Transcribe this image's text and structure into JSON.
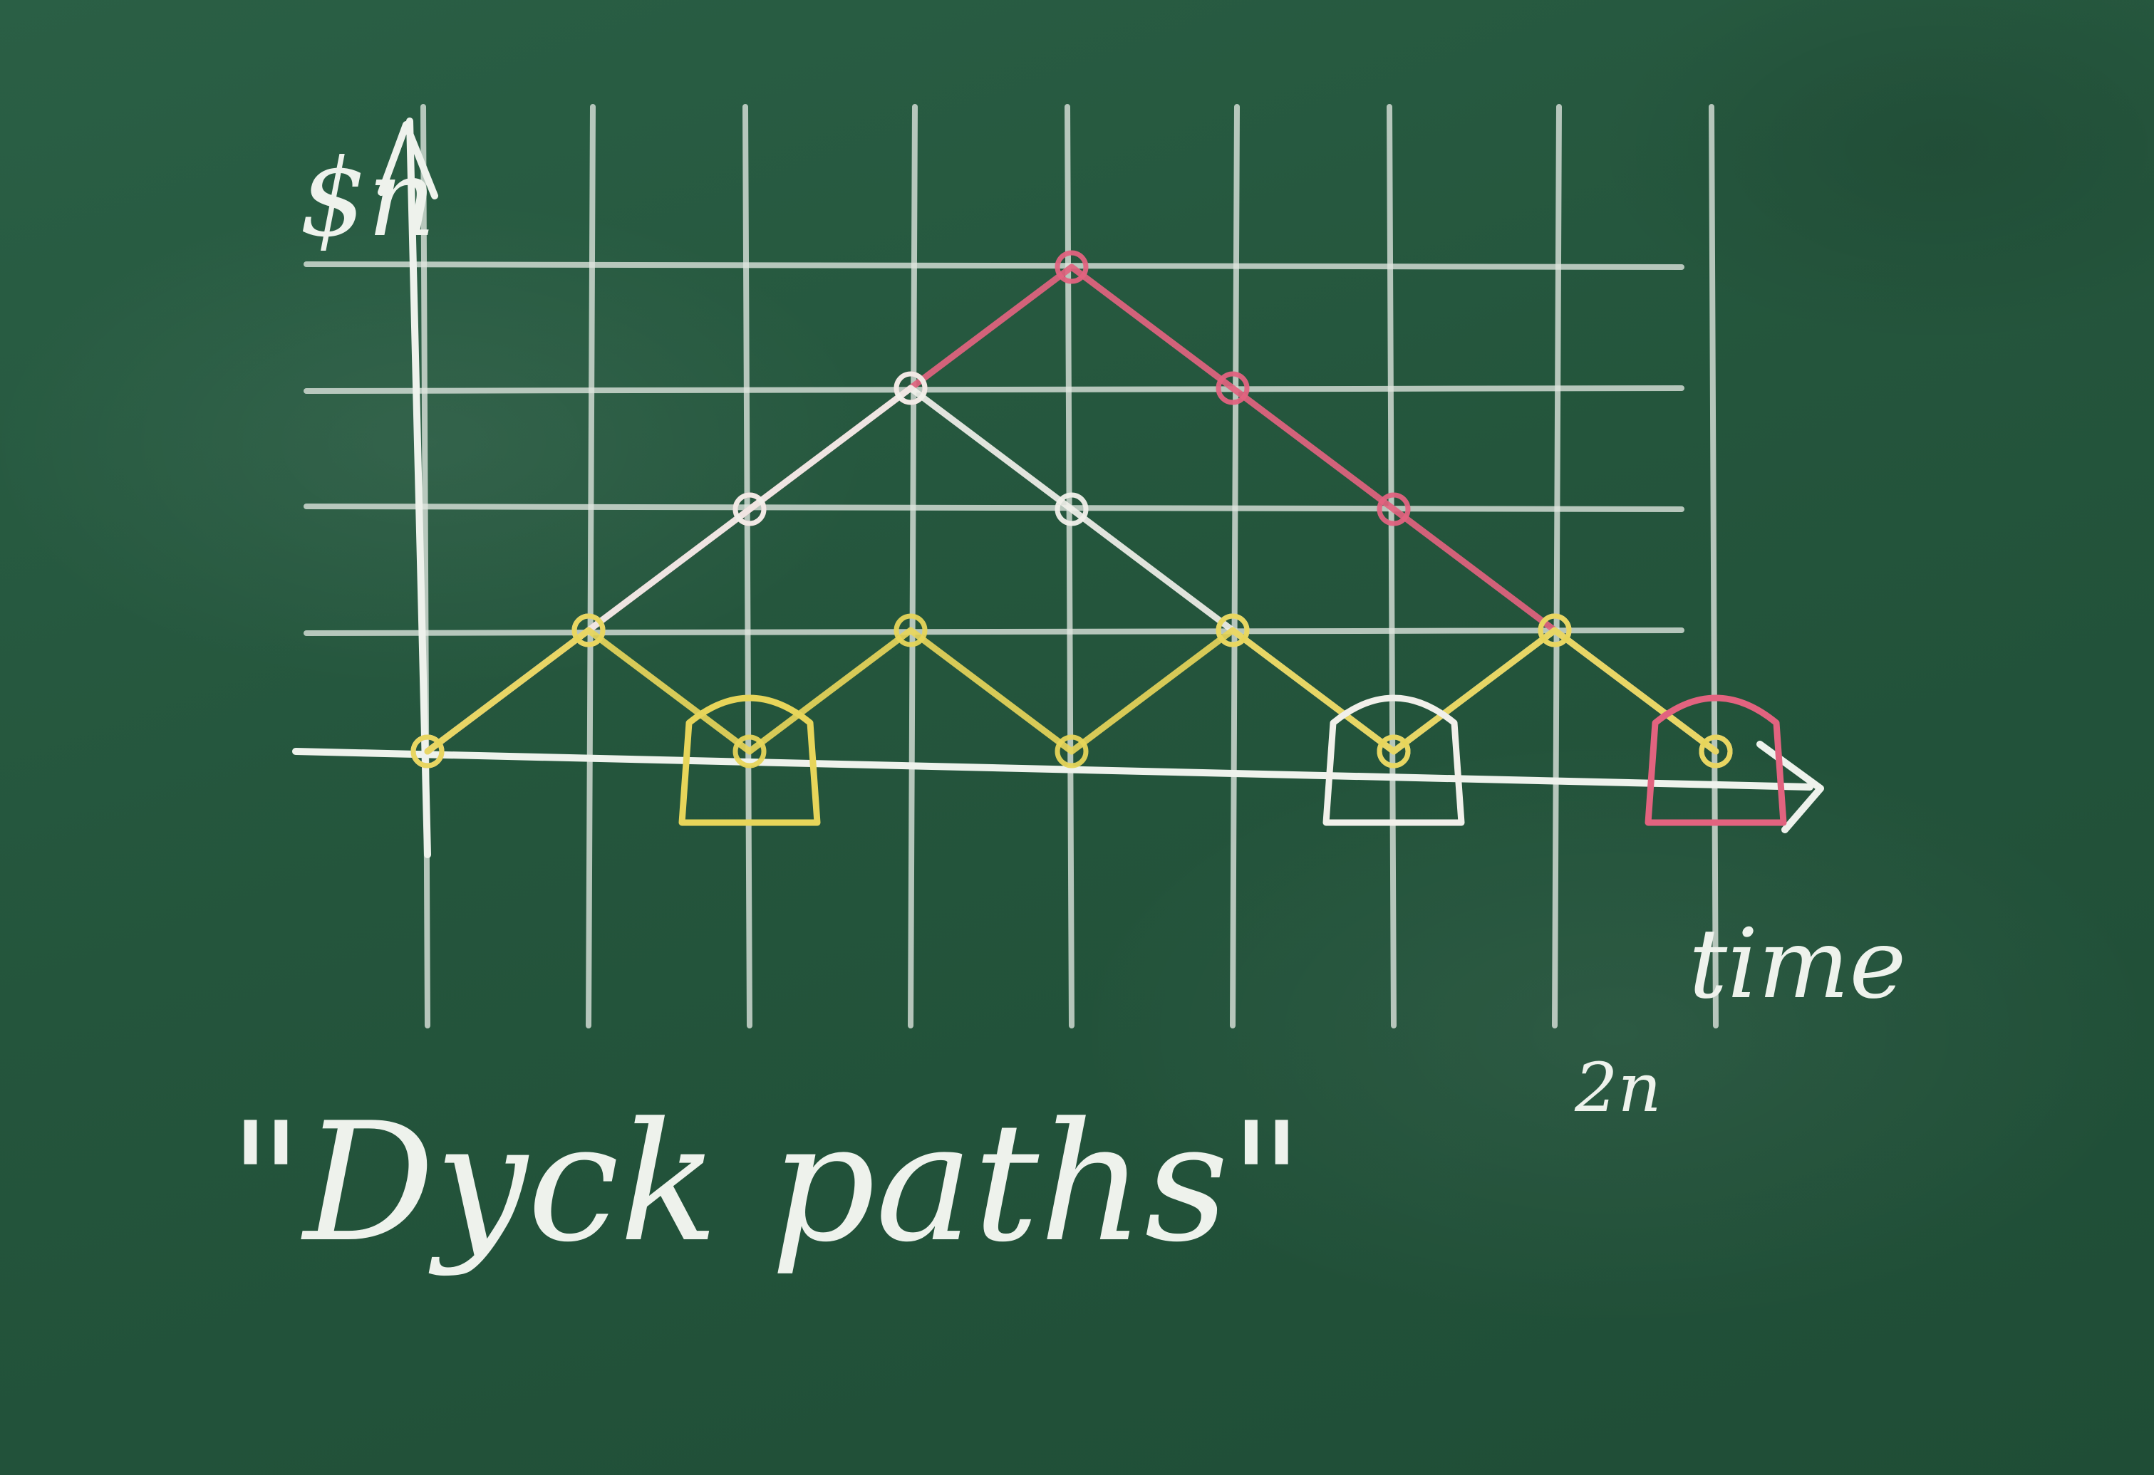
{
  "chart_data": {
    "type": "line",
    "title": "\"Dyck paths\"",
    "xlabel": "time",
    "ylabel": "$n",
    "x_tick_label_end": "2n",
    "xlim": [
      0,
      7
    ],
    "ylim": [
      0,
      4
    ],
    "grid": true,
    "x": [
      0,
      1,
      2,
      3,
      4,
      5,
      6,
      7
    ],
    "series": [
      {
        "name": "",
        "color": "#e2637f",
        "values": [
          0,
          1,
          2,
          3,
          4,
          3,
          2,
          1,
          0
        ],
        "x": [
          0,
          1,
          2,
          3,
          4,
          5,
          6,
          7,
          8
        ],
        "end_box": true
      },
      {
        "name": "",
        "color": "#f1f0ea",
        "values": [
          0,
          1,
          2,
          3,
          2,
          1,
          0,
          1,
          0
        ],
        "x": [
          0,
          1,
          2,
          3,
          4,
          5,
          6,
          7,
          8
        ],
        "box_at": 6
      },
      {
        "name": "",
        "color": "#e7d55a",
        "values": [
          0,
          1,
          0,
          1,
          0,
          1,
          0,
          1,
          0
        ],
        "x": [
          0,
          1,
          2,
          3,
          4,
          5,
          6,
          7,
          8
        ],
        "box_at": 2
      }
    ]
  }
}
